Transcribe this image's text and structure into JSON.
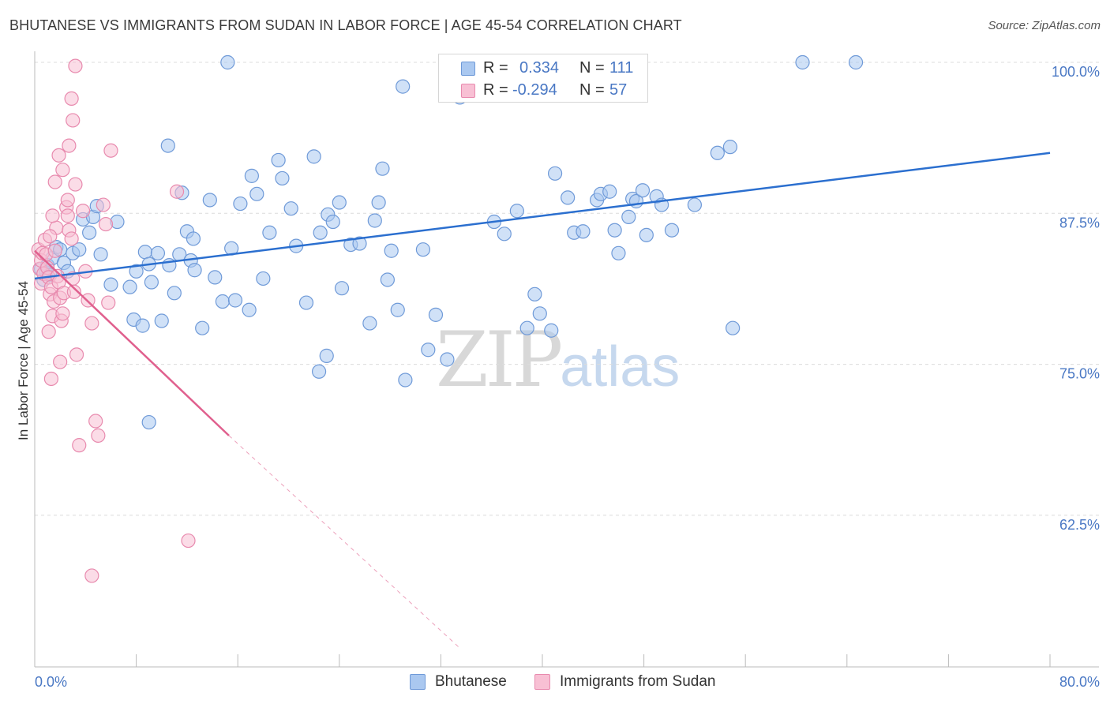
{
  "title": "BHUTANESE VS IMMIGRANTS FROM SUDAN IN LABOR FORCE | AGE 45-54 CORRELATION CHART",
  "source": "Source: ZipAtlas.com",
  "watermark": {
    "zip": "ZIP",
    "atlas": "atlas"
  },
  "legend": {
    "r_label": "R =",
    "n_label": "N =",
    "rows": [
      {
        "r": "0.334",
        "n": "111"
      },
      {
        "r": "-0.294",
        "n": "57"
      }
    ]
  },
  "colors": {
    "blue_fill": "#aac8f0",
    "blue_stroke": "#6f9ad8",
    "blue_line": "#2b6fcf",
    "pink_fill": "#f8c0d4",
    "pink_stroke": "#e88aae",
    "pink_line": "#e0608e",
    "grid": "#dcdcdc",
    "tick_text": "#4a78c4"
  },
  "chart_data": {
    "type": "scatter",
    "title": "BHUTANESE VS IMMIGRANTS FROM SUDAN IN LABOR FORCE | AGE 45-54 CORRELATION CHART",
    "xlabel": "",
    "ylabel": "In Labor Force | Age 45-54",
    "xlim": [
      0,
      80
    ],
    "ylim": [
      51.5,
      101
    ],
    "x_tick_labels": [
      "0.0%",
      "80.0%"
    ],
    "y_ticks": [
      62.5,
      75.0,
      87.5,
      100.0
    ],
    "y_tick_labels": [
      "62.5%",
      "75.0%",
      "87.5%",
      "100.0%"
    ],
    "grid": "horizontal dashed",
    "legend_placement": "bottom",
    "series": [
      {
        "name": "Bhutanese",
        "r": 0.334,
        "n": 111,
        "trend": {
          "x": [
            0,
            80
          ],
          "y": [
            82.1,
            92.5
          ],
          "dashed_extension": false
        },
        "points": [
          [
            0.5,
            82.9
          ],
          [
            0.7,
            82.0
          ],
          [
            0.9,
            82.6
          ],
          [
            1.0,
            83.2
          ],
          [
            1.2,
            82.4
          ],
          [
            1.4,
            83.8
          ],
          [
            1.7,
            84.7
          ],
          [
            2.0,
            84.5
          ],
          [
            2.3,
            83.4
          ],
          [
            2.6,
            82.7
          ],
          [
            3.0,
            84.2
          ],
          [
            3.5,
            84.5
          ],
          [
            3.8,
            87.0
          ],
          [
            4.3,
            85.9
          ],
          [
            4.6,
            87.2
          ],
          [
            4.9,
            88.1
          ],
          [
            5.2,
            84.1
          ],
          [
            6.0,
            81.6
          ],
          [
            6.5,
            86.8
          ],
          [
            7.5,
            81.4
          ],
          [
            7.8,
            78.7
          ],
          [
            8.0,
            82.7
          ],
          [
            8.5,
            78.2
          ],
          [
            8.7,
            84.3
          ],
          [
            9.0,
            83.3
          ],
          [
            9.2,
            81.8
          ],
          [
            9.7,
            84.2
          ],
          [
            10.0,
            78.6
          ],
          [
            10.6,
            83.2
          ],
          [
            11.0,
            80.9
          ],
          [
            11.4,
            84.1
          ],
          [
            11.6,
            89.2
          ],
          [
            12.0,
            86.0
          ],
          [
            12.3,
            83.6
          ],
          [
            12.6,
            82.8
          ],
          [
            13.2,
            78.0
          ],
          [
            13.8,
            88.6
          ],
          [
            14.2,
            82.2
          ],
          [
            14.8,
            80.2
          ],
          [
            15.5,
            84.6
          ],
          [
            15.8,
            80.3
          ],
          [
            16.2,
            88.3
          ],
          [
            16.9,
            79.5
          ],
          [
            17.1,
            90.6
          ],
          [
            17.5,
            89.1
          ],
          [
            18.0,
            82.1
          ],
          [
            18.5,
            85.9
          ],
          [
            19.2,
            91.9
          ],
          [
            19.5,
            90.4
          ],
          [
            20.2,
            87.9
          ],
          [
            20.6,
            84.8
          ],
          [
            21.4,
            80.1
          ],
          [
            22.0,
            92.2
          ],
          [
            22.5,
            85.9
          ],
          [
            23.1,
            87.4
          ],
          [
            23.5,
            86.8
          ],
          [
            24.0,
            88.4
          ],
          [
            24.2,
            81.3
          ],
          [
            24.9,
            84.9
          ],
          [
            25.6,
            85.0
          ],
          [
            26.4,
            78.4
          ],
          [
            26.8,
            86.9
          ],
          [
            27.1,
            88.4
          ],
          [
            27.4,
            91.2
          ],
          [
            27.8,
            82.0
          ],
          [
            28.1,
            84.4
          ],
          [
            28.6,
            79.5
          ],
          [
            29.2,
            73.7
          ],
          [
            30.6,
            84.5
          ],
          [
            31.6,
            79.1
          ],
          [
            32.5,
            75.4
          ],
          [
            33.0,
            100.0
          ],
          [
            31.0,
            76.2
          ],
          [
            29.0,
            98.0
          ],
          [
            22.4,
            74.4
          ],
          [
            23.0,
            75.7
          ],
          [
            36.2,
            86.8
          ],
          [
            37.0,
            85.8
          ],
          [
            38.0,
            87.7
          ],
          [
            38.8,
            78.0
          ],
          [
            39.4,
            80.8
          ],
          [
            39.8,
            79.2
          ],
          [
            40.7,
            77.8
          ],
          [
            41.0,
            90.8
          ],
          [
            42.0,
            88.8
          ],
          [
            42.5,
            85.9
          ],
          [
            43.2,
            86.0
          ],
          [
            44.3,
            88.6
          ],
          [
            44.6,
            89.1
          ],
          [
            45.3,
            89.3
          ],
          [
            45.7,
            86.1
          ],
          [
            46.0,
            84.2
          ],
          [
            46.8,
            87.2
          ],
          [
            47.1,
            88.7
          ],
          [
            47.4,
            88.5
          ],
          [
            47.9,
            89.4
          ],
          [
            48.2,
            85.7
          ],
          [
            49.0,
            88.9
          ],
          [
            49.4,
            88.2
          ],
          [
            50.2,
            86.1
          ],
          [
            52.0,
            88.2
          ],
          [
            53.8,
            92.5
          ],
          [
            54.8,
            93.0
          ],
          [
            60.5,
            100.0
          ],
          [
            64.7,
            100.0
          ],
          [
            55.0,
            78.0
          ],
          [
            15.2,
            100.0
          ],
          [
            10.5,
            93.1
          ],
          [
            33.5,
            97.1
          ],
          [
            9.0,
            70.2
          ],
          [
            12.5,
            85.4
          ]
        ]
      },
      {
        "name": "Immigrants from Sudan",
        "r": -0.294,
        "n": 57,
        "trend": {
          "x": [
            0,
            15.3
          ],
          "y": [
            84.4,
            69.1
          ],
          "dashed_to": [
            33.5,
            51.5
          ]
        },
        "points": [
          [
            0.3,
            84.5
          ],
          [
            0.4,
            82.9
          ],
          [
            0.5,
            83.6
          ],
          [
            0.5,
            81.7
          ],
          [
            0.6,
            84.2
          ],
          [
            0.7,
            82.5
          ],
          [
            0.8,
            85.3
          ],
          [
            0.9,
            84.1
          ],
          [
            1.0,
            83.0
          ],
          [
            1.1,
            82.2
          ],
          [
            1.2,
            80.8
          ],
          [
            1.3,
            81.4
          ],
          [
            1.4,
            79.0
          ],
          [
            1.5,
            80.2
          ],
          [
            1.6,
            84.4
          ],
          [
            1.7,
            86.3
          ],
          [
            1.8,
            82.3
          ],
          [
            1.9,
            81.8
          ],
          [
            2.0,
            80.5
          ],
          [
            2.1,
            78.6
          ],
          [
            2.2,
            79.2
          ],
          [
            2.3,
            80.9
          ],
          [
            2.5,
            88.0
          ],
          [
            2.6,
            87.3
          ],
          [
            2.7,
            86.1
          ],
          [
            2.9,
            85.4
          ],
          [
            3.0,
            82.1
          ],
          [
            3.1,
            81.0
          ],
          [
            3.3,
            75.8
          ],
          [
            3.5,
            68.3
          ],
          [
            3.8,
            87.7
          ],
          [
            4.0,
            82.7
          ],
          [
            4.2,
            80.3
          ],
          [
            4.5,
            78.4
          ],
          [
            4.8,
            70.3
          ],
          [
            5.0,
            69.1
          ],
          [
            5.4,
            88.2
          ],
          [
            5.6,
            86.6
          ],
          [
            5.8,
            80.1
          ],
          [
            6.0,
            92.7
          ],
          [
            2.7,
            93.1
          ],
          [
            3.0,
            95.2
          ],
          [
            3.2,
            99.7
          ],
          [
            2.9,
            97.0
          ],
          [
            1.6,
            90.1
          ],
          [
            1.9,
            92.3
          ],
          [
            2.2,
            91.1
          ],
          [
            2.6,
            88.6
          ],
          [
            1.4,
            87.3
          ],
          [
            1.2,
            85.6
          ],
          [
            1.1,
            77.7
          ],
          [
            1.3,
            73.8
          ],
          [
            11.2,
            89.3
          ],
          [
            12.1,
            60.4
          ],
          [
            4.5,
            57.5
          ],
          [
            2.0,
            75.2
          ],
          [
            3.2,
            89.9
          ]
        ]
      }
    ]
  }
}
